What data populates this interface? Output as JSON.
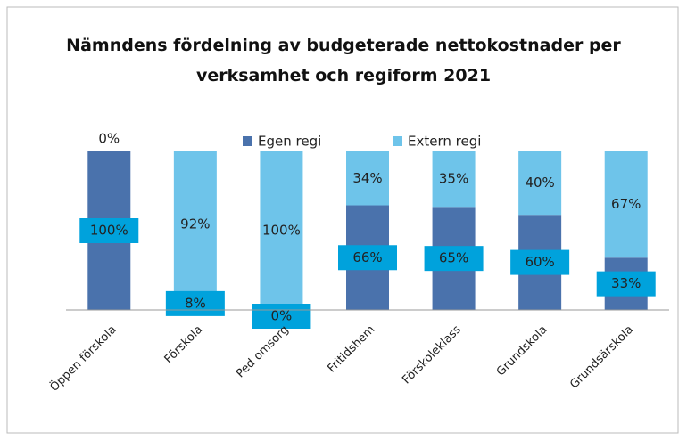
{
  "chart_data": {
    "type": "stacked_bar",
    "title": "Nämndens fördelning av budgeterade nettokostnader per verksamhet och regiform 2021",
    "categories": [
      "Öppen förskola",
      "Förskola",
      "Ped omsorg",
      "Fritidshem",
      "Förskoleklass",
      "Grundskola",
      "Grundsärskola"
    ],
    "series": [
      {
        "name": "Egen regi",
        "color": "#4a72ac",
        "values": [
          100,
          8,
          0,
          66,
          65,
          60,
          33
        ],
        "value_labels": [
          "100%",
          "8%",
          "0%",
          "66%",
          "65%",
          "60%",
          "33%"
        ]
      },
      {
        "name": "Extern regi",
        "color": "#6ec4ea",
        "values": [
          0,
          92,
          100,
          34,
          35,
          40,
          67
        ],
        "value_labels": [
          "0%",
          "92%",
          "100%",
          "34%",
          "35%",
          "40%",
          "67%"
        ]
      }
    ],
    "ylim": [
      0,
      100
    ]
  }
}
